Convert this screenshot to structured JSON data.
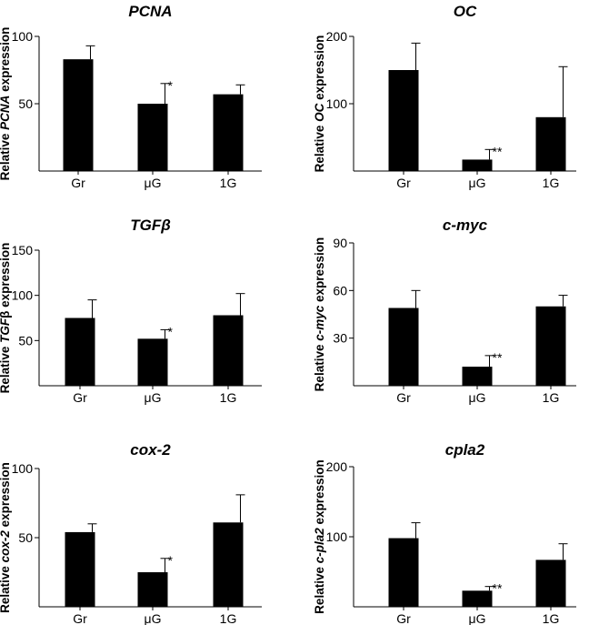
{
  "colors": {
    "bar": "#000000",
    "axis": "#000000",
    "background": "#ffffff"
  },
  "chart_data": [
    {
      "type": "bar",
      "title": "PCNA",
      "ylabel_prefix": "Relative ",
      "ylabel_gene": "PCNA",
      "ylabel_suffix": " expression",
      "categories": [
        "Gr",
        "μG",
        "1G"
      ],
      "values": [
        83,
        50,
        57
      ],
      "errors": [
        10,
        15,
        7
      ],
      "significance": [
        "",
        "*",
        ""
      ],
      "yticks": [
        50,
        100
      ],
      "ylim": [
        0,
        100
      ]
    },
    {
      "type": "bar",
      "title": "OC",
      "ylabel_prefix": "Relative ",
      "ylabel_gene": "OC",
      "ylabel_suffix": " expression",
      "categories": [
        "Gr",
        "μG",
        "1G"
      ],
      "values": [
        150,
        17,
        80
      ],
      "errors": [
        40,
        15,
        75
      ],
      "significance": [
        "",
        "**",
        ""
      ],
      "yticks": [
        100,
        200
      ],
      "ylim": [
        0,
        200
      ]
    },
    {
      "type": "bar",
      "title": "TGFβ",
      "ylabel_prefix": "Relative ",
      "ylabel_gene": "TGF",
      "ylabel_suffix": "β expression",
      "categories": [
        "Gr",
        "μG",
        "1G"
      ],
      "values": [
        75,
        52,
        78
      ],
      "errors": [
        20,
        10,
        24
      ],
      "significance": [
        "",
        "*",
        ""
      ],
      "yticks": [
        50,
        100,
        150
      ],
      "ylim": [
        0,
        150
      ]
    },
    {
      "type": "bar",
      "title": "c-myc",
      "ylabel_prefix": "Relative ",
      "ylabel_gene": "c-myc",
      "ylabel_suffix": " expression",
      "categories": [
        "Gr",
        "μG",
        "1G"
      ],
      "values": [
        49,
        12,
        50
      ],
      "errors": [
        11,
        7,
        7
      ],
      "significance": [
        "",
        "**",
        ""
      ],
      "yticks": [
        30,
        60,
        90
      ],
      "ylim": [
        0,
        90
      ]
    },
    {
      "type": "bar",
      "title": "cox-2",
      "ylabel_prefix": "Relative ",
      "ylabel_gene": "cox-2",
      "ylabel_suffix": " expression",
      "categories": [
        "Gr",
        "μG",
        "1G"
      ],
      "values": [
        54,
        25,
        61
      ],
      "errors": [
        6,
        10,
        20
      ],
      "significance": [
        "",
        "*",
        ""
      ],
      "yticks": [
        50,
        100
      ],
      "ylim": [
        0,
        100
      ]
    },
    {
      "type": "bar",
      "title": "cpla2",
      "ylabel_prefix": "Relative ",
      "ylabel_gene": "c-pla2",
      "ylabel_suffix": " expression",
      "categories": [
        "Gr",
        "μG",
        "1G"
      ],
      "values": [
        98,
        23,
        67
      ],
      "errors": [
        22,
        6,
        23
      ],
      "significance": [
        "",
        "**",
        ""
      ],
      "yticks": [
        100,
        200
      ],
      "ylim": [
        0,
        200
      ]
    }
  ]
}
